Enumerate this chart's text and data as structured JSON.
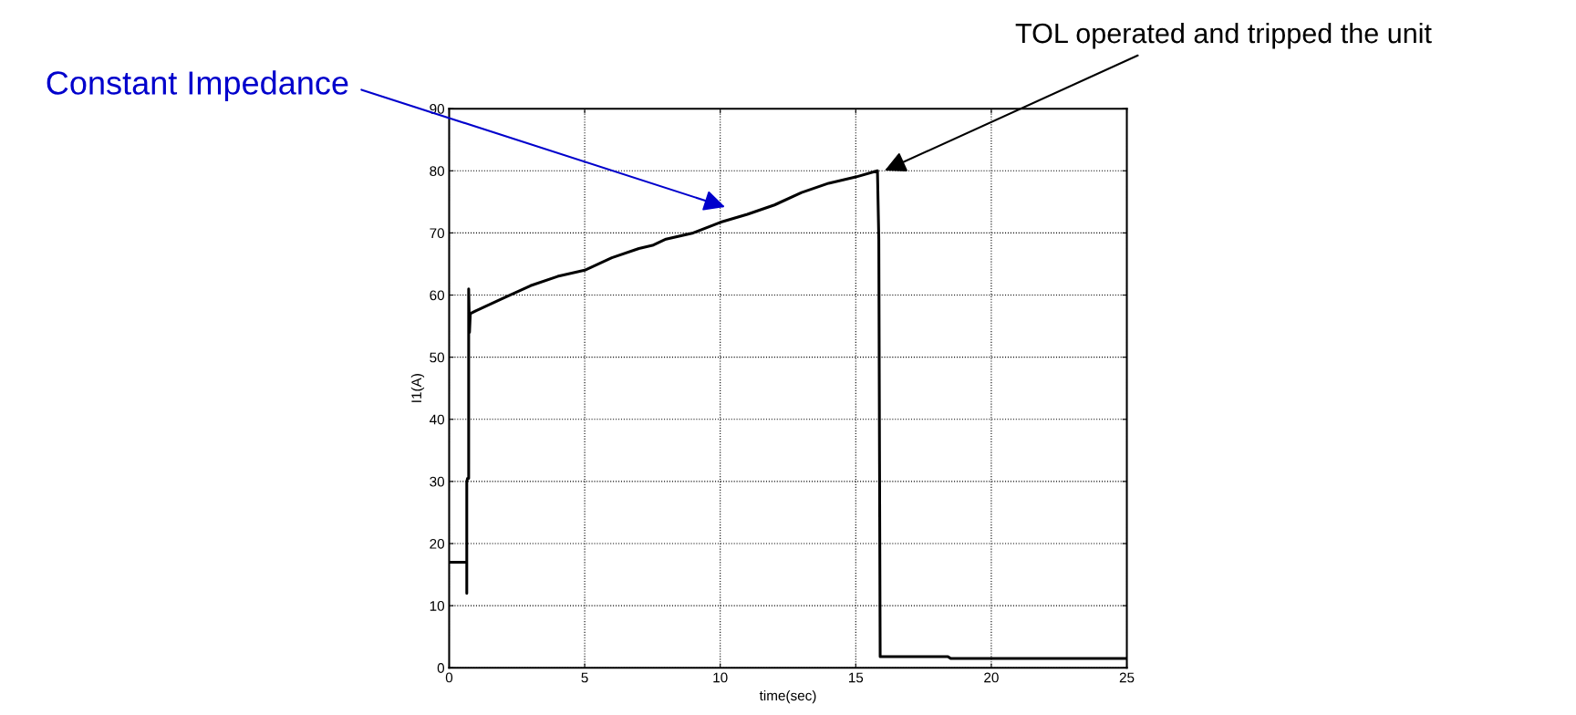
{
  "chart_data": {
    "type": "line",
    "xlabel": "time(sec)",
    "ylabel": "I1(A)",
    "x": [
      0,
      0.65,
      0.65,
      0.65,
      0.68,
      0.72,
      0.72,
      0.75,
      0.78,
      1,
      2,
      3,
      4,
      5,
      6,
      7,
      7.5,
      8,
      9,
      10,
      11,
      12,
      13,
      14,
      15,
      15.8,
      15.85,
      15.9,
      18.4,
      18.5,
      25
    ],
    "series": [
      {
        "color": "#000000",
        "values": [
          17,
          17,
          12,
          30,
          30.5,
          30.5,
          61,
          54,
          57,
          57.5,
          59.5,
          61.5,
          63,
          64,
          66,
          67.5,
          68,
          69,
          70,
          71.7,
          73,
          74.5,
          76.5,
          78,
          79,
          80,
          69,
          1.8,
          1.8,
          1.5,
          1.5
        ]
      }
    ],
    "xlim": [
      0,
      25
    ],
    "xticks": [
      0,
      5,
      10,
      15,
      20,
      25
    ],
    "ylim": [
      0,
      90
    ],
    "yticks": [
      0,
      10,
      20,
      30,
      40,
      50,
      60,
      70,
      80,
      90
    ],
    "grid": true,
    "annotations": [
      "Constant Impedance",
      "TOL operated and tripped the unit"
    ]
  }
}
